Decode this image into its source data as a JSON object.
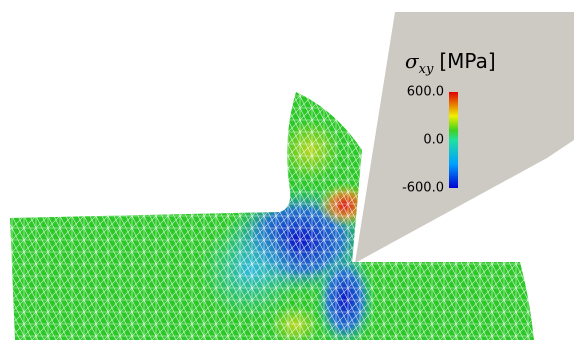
{
  "colorbar": {
    "symbol": "σ",
    "subscript": "xy",
    "unit": "[MPa]",
    "ticks": [
      {
        "value": 600,
        "label": "600.0"
      },
      {
        "value": 0,
        "label": "0.0"
      },
      {
        "value": -600,
        "label": "-600.0"
      }
    ]
  }
}
